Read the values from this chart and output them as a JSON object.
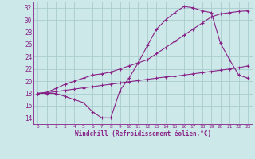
{
  "xlabel": "Windchill (Refroidissement éolien,°C)",
  "background_color": "#cce8e8",
  "grid_color": "#aacccc",
  "line_color": "#882288",
  "xlim": [
    -0.5,
    23.5
  ],
  "ylim": [
    13,
    33
  ],
  "yticks": [
    14,
    16,
    18,
    20,
    22,
    24,
    26,
    28,
    30,
    32
  ],
  "xticks": [
    0,
    1,
    2,
    3,
    4,
    5,
    6,
    7,
    8,
    9,
    10,
    11,
    12,
    13,
    14,
    15,
    16,
    17,
    18,
    19,
    20,
    21,
    22,
    23
  ],
  "series": [
    {
      "x": [
        0,
        1,
        2,
        3,
        4,
        5,
        6,
        7,
        8,
        9,
        10,
        11,
        12,
        13,
        14,
        15,
        16,
        17,
        18,
        19,
        20,
        21,
        22,
        23
      ],
      "y": [
        18,
        18,
        18,
        17.5,
        17,
        16.5,
        15,
        14.0,
        14.0,
        18.5,
        20.5,
        23,
        25.8,
        28.5,
        30,
        31.2,
        32.2,
        32.0,
        31.5,
        31.2,
        26.2,
        23.5,
        21.0,
        20.5
      ]
    },
    {
      "x": [
        0,
        1,
        2,
        3,
        4,
        5,
        6,
        7,
        8,
        9,
        10,
        11,
        12,
        13,
        14,
        15,
        16,
        17,
        18,
        19,
        20,
        21,
        22,
        23
      ],
      "y": [
        18,
        18.2,
        18.8,
        19.5,
        20.0,
        20.5,
        21.0,
        21.2,
        21.5,
        22.0,
        22.5,
        23.0,
        23.5,
        24.5,
        25.5,
        26.5,
        27.5,
        28.5,
        29.5,
        30.5,
        31.0,
        31.2,
        31.4,
        31.5
      ]
    },
    {
      "x": [
        0,
        1,
        2,
        3,
        4,
        5,
        6,
        7,
        8,
        9,
        10,
        11,
        12,
        13,
        14,
        15,
        16,
        17,
        18,
        19,
        20,
        21,
        22,
        23
      ],
      "y": [
        18,
        18.1,
        18.3,
        18.5,
        18.7,
        18.9,
        19.1,
        19.3,
        19.5,
        19.7,
        19.9,
        20.1,
        20.3,
        20.5,
        20.7,
        20.8,
        21.0,
        21.2,
        21.4,
        21.6,
        21.8,
        22.0,
        22.2,
        22.5
      ]
    }
  ]
}
